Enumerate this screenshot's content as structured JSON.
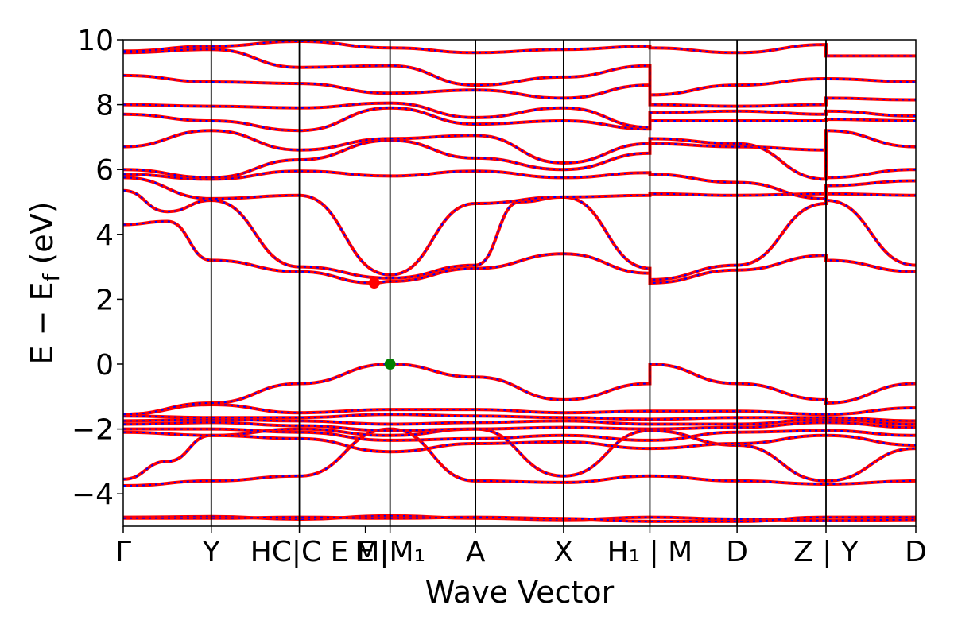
{
  "chart_data": {
    "type": "line",
    "title": "",
    "xlabel": "Wave Vector",
    "ylabel": "E − E",
    "ylabel_subscript": "f",
    "ylabel_unit": " (eV)",
    "ylim": [
      -5,
      10
    ],
    "xlim": [
      0,
      10.2
    ],
    "grid": false,
    "yticks": [
      {
        "value": 10,
        "label": "10"
      },
      {
        "value": 8,
        "label": "8"
      },
      {
        "value": 6,
        "label": "6"
      },
      {
        "value": 4,
        "label": "4"
      },
      {
        "value": 2,
        "label": "2"
      },
      {
        "value": 0,
        "label": "0"
      },
      {
        "value": -2,
        "label": "−2"
      },
      {
        "value": -4,
        "label": "−4"
      }
    ],
    "kpoint_lines": [
      0,
      1.0,
      2.0,
      3.03,
      4.0,
      5.0,
      5.98,
      6.97,
      7.98,
      9.0
    ],
    "xticks": [
      {
        "value": 0,
        "label": "Γ"
      },
      {
        "value": 1.0,
        "label": "Y"
      },
      {
        "value": 2.0,
        "label": "HC|C E"
      },
      {
        "value": 2.75,
        "label": "E"
      },
      {
        "value": 3.03,
        "label": "M|M₁"
      },
      {
        "value": 4.0,
        "label": "A"
      },
      {
        "value": 5.0,
        "label": "X"
      },
      {
        "value": 5.98,
        "label": "H₁ | M"
      },
      {
        "value": 6.97,
        "label": "D"
      },
      {
        "value": 7.98,
        "label": "Z | Y"
      },
      {
        "value": 9.0,
        "label": "D"
      }
    ],
    "series_colors": {
      "primary": "#ff0000",
      "overlay": "#0000ff"
    },
    "markers": [
      {
        "name": "CBM",
        "x": 2.85,
        "y": 2.5,
        "color": "#ff0000"
      },
      {
        "name": "VBM",
        "x": 3.03,
        "y": 0.0,
        "color": "#008000"
      }
    ],
    "bands": [
      [
        [
          0,
          -4.72
        ],
        [
          1.0,
          -4.7
        ],
        [
          2.0,
          -4.78
        ],
        [
          3.03,
          -4.68
        ],
        [
          4.0,
          -4.75
        ],
        [
          5.0,
          -4.8
        ],
        [
          5.98,
          -4.72
        ],
        [
          6.97,
          -4.78
        ],
        [
          7.98,
          -4.82
        ],
        [
          9.0,
          -4.8
        ]
      ],
      [
        [
          0,
          -4.75
        ],
        [
          1.0,
          -4.75
        ],
        [
          2.0,
          -4.72
        ],
        [
          3.03,
          -4.75
        ],
        [
          4.0,
          -4.72
        ],
        [
          5.0,
          -4.76
        ],
        [
          5.98,
          -4.85
        ],
        [
          6.97,
          -4.85
        ],
        [
          7.98,
          -4.72
        ],
        [
          9.0,
          -4.72
        ]
      ],
      [
        [
          0,
          -3.75
        ],
        [
          1.0,
          -3.6
        ],
        [
          2.0,
          -3.45
        ],
        [
          3.03,
          -2.0
        ],
        [
          4.0,
          -3.6
        ],
        [
          5.0,
          -3.65
        ],
        [
          5.98,
          -3.45
        ],
        [
          6.97,
          -3.6
        ],
        [
          7.98,
          -3.7
        ],
        [
          9.0,
          -3.6
        ]
      ],
      [
        [
          0,
          -3.55
        ],
        [
          0.5,
          -3.0
        ],
        [
          1.0,
          -2.2
        ],
        [
          2.0,
          -2.0
        ],
        [
          3.03,
          -2.2
        ],
        [
          4.0,
          -2.0
        ],
        [
          5.0,
          -3.45
        ],
        [
          5.98,
          -2.05
        ],
        [
          6.97,
          -2.5
        ],
        [
          7.98,
          -3.6
        ],
        [
          9.0,
          -2.6
        ]
      ],
      [
        [
          0,
          -2.1
        ],
        [
          1.0,
          -2.2
        ],
        [
          2.0,
          -2.3
        ],
        [
          3.03,
          -2.7
        ],
        [
          4.0,
          -2.45
        ],
        [
          5.0,
          -2.4
        ],
        [
          5.98,
          -2.6
        ],
        [
          6.97,
          -2.45
        ],
        [
          7.98,
          -2.2
        ],
        [
          9.0,
          -2.5
        ]
      ],
      [
        [
          0,
          -2.0
        ],
        [
          1.0,
          -2.0
        ],
        [
          2.0,
          -2.1
        ],
        [
          3.03,
          -2.35
        ],
        [
          4.0,
          -2.3
        ],
        [
          5.0,
          -2.2
        ],
        [
          5.98,
          -2.35
        ],
        [
          6.97,
          -2.1
        ],
        [
          7.98,
          -2.05
        ],
        [
          9.0,
          -2.2
        ]
      ],
      [
        [
          0,
          -1.85
        ],
        [
          1.0,
          -1.8
        ],
        [
          2.0,
          -1.9
        ],
        [
          3.03,
          -2.05
        ],
        [
          4.0,
          -2.0
        ],
        [
          5.0,
          -1.95
        ],
        [
          5.98,
          -2.0
        ],
        [
          6.97,
          -1.95
        ],
        [
          7.98,
          -1.8
        ],
        [
          9.0,
          -1.95
        ]
      ],
      [
        [
          0,
          -1.75
        ],
        [
          1.0,
          -1.7
        ],
        [
          2.0,
          -1.75
        ],
        [
          3.03,
          -1.85
        ],
        [
          4.0,
          -1.8
        ],
        [
          5.0,
          -1.75
        ],
        [
          5.98,
          -1.85
        ],
        [
          6.97,
          -1.85
        ],
        [
          7.98,
          -1.7
        ],
        [
          9.0,
          -1.85
        ]
      ],
      [
        [
          0,
          -1.6
        ],
        [
          1.0,
          -1.65
        ],
        [
          2.0,
          -1.65
        ],
        [
          3.03,
          -1.55
        ],
        [
          4.0,
          -1.6
        ],
        [
          5.0,
          -1.65
        ],
        [
          5.98,
          -1.7
        ],
        [
          6.97,
          -1.65
        ],
        [
          7.98,
          -1.65
        ],
        [
          9.0,
          -1.75
        ]
      ],
      [
        [
          0,
          -1.55
        ],
        [
          1.0,
          -1.25
        ],
        [
          2.0,
          -1.5
        ],
        [
          3.03,
          -1.4
        ],
        [
          4.0,
          -1.4
        ],
        [
          5.0,
          -1.5
        ],
        [
          5.98,
          -1.45
        ],
        [
          6.97,
          -1.45
        ],
        [
          7.98,
          -1.55
        ],
        [
          9.0,
          -1.35
        ]
      ],
      [
        [
          0,
          -1.55
        ],
        [
          1.0,
          -1.2
        ],
        [
          2.0,
          -0.6
        ],
        [
          3.03,
          0.0
        ],
        [
          4.0,
          -0.4
        ],
        [
          5.0,
          -1.1
        ],
        [
          5.98,
          -0.6
        ],
        [
          5.98,
          0.0
        ],
        [
          6.97,
          -0.6
        ],
        [
          7.98,
          -1.1
        ],
        [
          7.98,
          -1.2
        ],
        [
          9.0,
          -0.6
        ]
      ],
      [
        [
          0,
          4.3
        ],
        [
          0.5,
          4.4
        ],
        [
          1.0,
          3.2
        ],
        [
          2.0,
          2.85
        ],
        [
          2.85,
          2.5
        ],
        [
          3.03,
          2.55
        ],
        [
          4.0,
          2.95
        ],
        [
          5.0,
          3.4
        ],
        [
          5.98,
          2.8
        ],
        [
          5.98,
          2.5
        ],
        [
          6.97,
          2.9
        ],
        [
          7.98,
          3.35
        ],
        [
          7.98,
          3.2
        ],
        [
          9.0,
          2.85
        ]
      ],
      [
        [
          0,
          5.35
        ],
        [
          0.5,
          4.7
        ],
        [
          1.0,
          5.05
        ],
        [
          2.0,
          3.0
        ],
        [
          3.03,
          2.65
        ],
        [
          4.0,
          3.05
        ],
        [
          4.5,
          5.0
        ],
        [
          5.0,
          5.15
        ],
        [
          5.98,
          2.95
        ],
        [
          5.98,
          2.6
        ],
        [
          6.97,
          3.05
        ],
        [
          7.98,
          4.95
        ],
        [
          7.98,
          5.05
        ],
        [
          9.0,
          3.05
        ]
      ],
      [
        [
          0,
          5.75
        ],
        [
          1.0,
          5.1
        ],
        [
          2.0,
          5.2
        ],
        [
          3.03,
          2.75
        ],
        [
          4.0,
          4.95
        ],
        [
          5.0,
          5.15
        ],
        [
          5.98,
          5.2
        ],
        [
          5.98,
          5.25
        ],
        [
          6.97,
          5.2
        ],
        [
          7.98,
          5.25
        ],
        [
          9.0,
          5.2
        ]
      ],
      [
        [
          0,
          5.85
        ],
        [
          1.0,
          5.7
        ],
        [
          2.0,
          5.95
        ],
        [
          3.03,
          5.8
        ],
        [
          4.0,
          5.95
        ],
        [
          5.0,
          5.75
        ],
        [
          5.98,
          5.9
        ],
        [
          5.98,
          5.85
        ],
        [
          6.97,
          5.6
        ],
        [
          7.98,
          5.1
        ],
        [
          7.98,
          5.5
        ],
        [
          9.0,
          5.65
        ]
      ],
      [
        [
          0,
          6.0
        ],
        [
          1.0,
          5.75
        ],
        [
          2.0,
          6.3
        ],
        [
          3.03,
          6.9
        ],
        [
          4.0,
          6.35
        ],
        [
          5.0,
          6.0
        ],
        [
          5.98,
          6.5
        ],
        [
          5.98,
          6.8
        ],
        [
          6.97,
          6.7
        ],
        [
          7.98,
          6.6
        ],
        [
          7.98,
          5.75
        ],
        [
          9.0,
          6.0
        ]
      ],
      [
        [
          0,
          6.7
        ],
        [
          1.0,
          7.2
        ],
        [
          2.0,
          6.6
        ],
        [
          3.03,
          6.95
        ],
        [
          4.0,
          7.05
        ],
        [
          5.0,
          6.2
        ],
        [
          5.98,
          6.8
        ],
        [
          5.98,
          6.95
        ],
        [
          6.97,
          6.8
        ],
        [
          7.98,
          5.7
        ],
        [
          7.98,
          7.2
        ],
        [
          9.0,
          6.7
        ]
      ],
      [
        [
          0,
          7.7
        ],
        [
          1.0,
          7.5
        ],
        [
          2.0,
          7.2
        ],
        [
          3.03,
          7.9
        ],
        [
          4.0,
          7.4
        ],
        [
          5.0,
          7.5
        ],
        [
          5.98,
          7.25
        ],
        [
          5.98,
          7.5
        ],
        [
          6.97,
          7.5
        ],
        [
          7.98,
          7.5
        ],
        [
          7.98,
          7.55
        ],
        [
          9.0,
          7.5
        ]
      ],
      [
        [
          0,
          8.0
        ],
        [
          1.0,
          7.95
        ],
        [
          2.0,
          7.9
        ],
        [
          3.03,
          8.05
        ],
        [
          4.0,
          7.6
        ],
        [
          5.0,
          7.9
        ],
        [
          5.98,
          7.3
        ],
        [
          5.98,
          7.75
        ],
        [
          6.97,
          7.8
        ],
        [
          7.98,
          7.7
        ],
        [
          7.98,
          7.8
        ],
        [
          9.0,
          7.65
        ]
      ],
      [
        [
          0,
          8.9
        ],
        [
          1.0,
          8.7
        ],
        [
          2.0,
          8.65
        ],
        [
          3.03,
          8.35
        ],
        [
          4.0,
          8.45
        ],
        [
          5.0,
          8.2
        ],
        [
          5.98,
          8.6
        ],
        [
          5.98,
          8.0
        ],
        [
          6.97,
          7.95
        ],
        [
          7.98,
          8.0
        ],
        [
          7.98,
          8.2
        ],
        [
          9.0,
          8.15
        ]
      ],
      [
        [
          0,
          9.6
        ],
        [
          1.0,
          9.7
        ],
        [
          2.0,
          9.15
        ],
        [
          3.03,
          9.2
        ],
        [
          4.0,
          8.6
        ],
        [
          5.0,
          8.85
        ],
        [
          5.98,
          9.2
        ],
        [
          5.98,
          8.3
        ],
        [
          6.97,
          8.6
        ],
        [
          7.98,
          8.8
        ],
        [
          7.98,
          8.8
        ],
        [
          9.0,
          8.7
        ]
      ],
      [
        [
          0,
          9.65
        ],
        [
          1.0,
          9.8
        ],
        [
          2.0,
          9.95
        ],
        [
          3.03,
          9.75
        ],
        [
          4.0,
          9.6
        ],
        [
          5.0,
          9.7
        ],
        [
          5.98,
          9.8
        ],
        [
          5.98,
          9.75
        ],
        [
          6.97,
          9.6
        ],
        [
          7.98,
          9.85
        ],
        [
          7.98,
          9.5
        ],
        [
          9.0,
          9.5
        ]
      ]
    ]
  }
}
